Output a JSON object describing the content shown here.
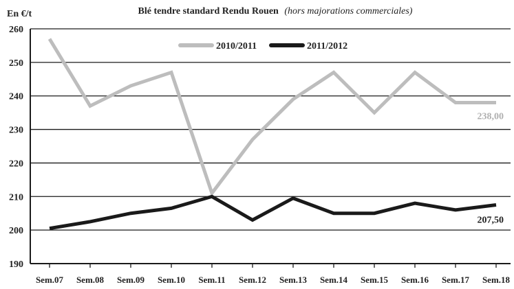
{
  "chart_data": {
    "type": "line",
    "title": "Blé tendre standard Rendu Rouen",
    "subtitle": "(hors majorations commerciales)",
    "ylabel": "En €/t",
    "xlabel": "",
    "categories": [
      "Sem.07",
      "Sem.08",
      "Sem.09",
      "Sem.10",
      "Sem.11",
      "Sem.12",
      "Sem.13",
      "Sem.14",
      "Sem.15",
      "Sem.16",
      "Sem.17",
      "Sem.18"
    ],
    "ylim": [
      190,
      260
    ],
    "yticks": [
      "190",
      "200",
      "210",
      "220",
      "230",
      "240",
      "250",
      "260"
    ],
    "grid": true,
    "legend_position": "top-center",
    "series": [
      {
        "name": "2010/2011",
        "color": "#bdbdbd",
        "values": [
          257,
          237,
          243,
          247,
          211,
          227,
          239,
          247,
          235,
          247,
          238,
          238
        ]
      },
      {
        "name": "2011/2012",
        "color": "#1a1a1a",
        "values": [
          200.5,
          202.5,
          205,
          206.5,
          210,
          203,
          209.5,
          205,
          205,
          208,
          206,
          207.5
        ]
      }
    ],
    "annotations": [
      {
        "series": 0,
        "text": "238,00"
      },
      {
        "series": 1,
        "text": "207,50"
      }
    ]
  }
}
